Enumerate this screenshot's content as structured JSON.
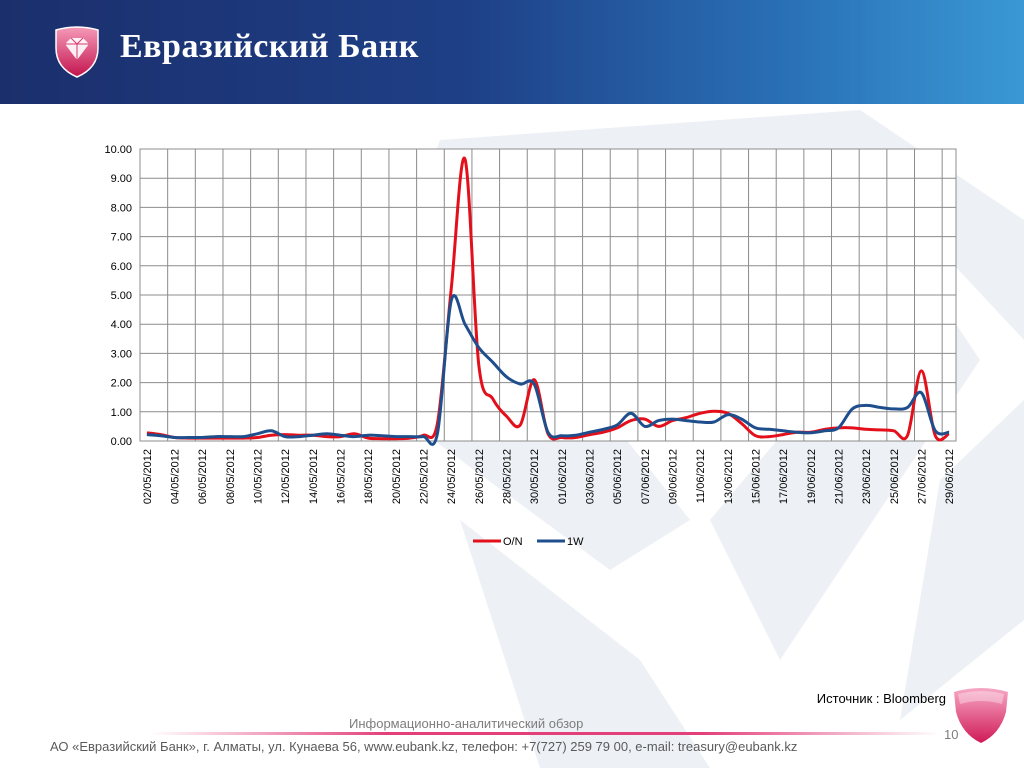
{
  "header": {
    "bank_name": "Евразийский Банк"
  },
  "chart_data": {
    "type": "line",
    "title": "",
    "xlabel": "",
    "ylabel": "",
    "ylim": [
      0,
      10
    ],
    "y_ticks": [
      "0.00",
      "1.00",
      "2.00",
      "3.00",
      "4.00",
      "5.00",
      "6.00",
      "7.00",
      "8.00",
      "9.00",
      "10.00"
    ],
    "grid": true,
    "legend_position": "bottom",
    "x_tick_labels": [
      "02/05/2012",
      "04/05/2012",
      "06/05/2012",
      "08/05/2012",
      "10/05/2012",
      "12/05/2012",
      "14/05/2012",
      "16/05/2012",
      "18/05/2012",
      "20/05/2012",
      "22/05/2012",
      "24/05/2012",
      "26/05/2012",
      "28/05/2012",
      "30/05/2012",
      "01/06/2012",
      "03/06/2012",
      "05/06/2012",
      "07/06/2012",
      "09/06/2012",
      "11/06/2012",
      "13/06/2012",
      "15/06/2012",
      "17/06/2012",
      "19/06/2012",
      "21/06/2012",
      "23/06/2012",
      "25/06/2012",
      "27/06/2012",
      "29/06/2012"
    ],
    "x": [
      "02/05/2012",
      "03/05/2012",
      "04/05/2012",
      "05/05/2012",
      "06/05/2012",
      "07/05/2012",
      "08/05/2012",
      "09/05/2012",
      "10/05/2012",
      "11/05/2012",
      "12/05/2012",
      "13/05/2012",
      "14/05/2012",
      "15/05/2012",
      "16/05/2012",
      "17/05/2012",
      "18/05/2012",
      "19/05/2012",
      "20/05/2012",
      "21/05/2012",
      "22/05/2012",
      "23/05/2012",
      "24/05/2012",
      "25/05/2012",
      "26/05/2012",
      "27/05/2012",
      "28/05/2012",
      "29/05/2012",
      "30/05/2012",
      "31/05/2012",
      "01/06/2012",
      "02/06/2012",
      "03/06/2012",
      "04/06/2012",
      "05/06/2012",
      "06/06/2012",
      "07/06/2012",
      "08/06/2012",
      "09/06/2012",
      "10/06/2012",
      "11/06/2012",
      "12/06/2012",
      "13/06/2012",
      "14/06/2012",
      "15/06/2012",
      "16/06/2012",
      "17/06/2012",
      "18/06/2012",
      "19/06/2012",
      "20/06/2012",
      "21/06/2012",
      "22/06/2012",
      "23/06/2012",
      "24/06/2012",
      "25/06/2012",
      "26/06/2012",
      "27/06/2012",
      "28/06/2012",
      "29/06/2012"
    ],
    "series": [
      {
        "name": "O/N",
        "color": "#e3101b",
        "values": [
          0.28,
          0.22,
          0.12,
          0.1,
          0.1,
          0.1,
          0.1,
          0.1,
          0.12,
          0.2,
          0.22,
          0.2,
          0.2,
          0.15,
          0.15,
          0.25,
          0.1,
          0.08,
          0.08,
          0.1,
          0.2,
          0.6,
          5.2,
          9.65,
          2.6,
          1.45,
          0.85,
          0.55,
          2.1,
          0.25,
          0.12,
          0.12,
          0.22,
          0.3,
          0.45,
          0.7,
          0.75,
          0.5,
          0.7,
          0.8,
          0.95,
          1.02,
          0.95,
          0.6,
          0.18,
          0.15,
          0.22,
          0.3,
          0.3,
          0.4,
          0.45,
          0.45,
          0.4,
          0.38,
          0.35,
          0.2,
          2.4,
          0.18,
          0.25
        ]
      },
      {
        "name": "1W",
        "color": "#1f4e8c",
        "values": [
          0.22,
          0.18,
          0.12,
          0.12,
          0.12,
          0.15,
          0.15,
          0.15,
          0.25,
          0.35,
          0.15,
          0.15,
          0.2,
          0.25,
          0.2,
          0.15,
          0.2,
          0.18,
          0.15,
          0.15,
          0.15,
          0.25,
          4.8,
          4.0,
          3.2,
          2.7,
          2.2,
          1.95,
          1.95,
          0.3,
          0.18,
          0.2,
          0.3,
          0.4,
          0.55,
          0.95,
          0.5,
          0.7,
          0.75,
          0.7,
          0.65,
          0.65,
          0.9,
          0.75,
          0.45,
          0.4,
          0.35,
          0.3,
          0.28,
          0.35,
          0.45,
          1.1,
          1.22,
          1.15,
          1.1,
          1.15,
          1.65,
          0.35,
          0.3
        ]
      }
    ]
  },
  "source_label": "Источник : Bloomberg",
  "footer": {
    "title": "Информационно-аналитический обзор",
    "contacts": "АО «Евразийский Банк», г. Алматы, ул. Кунаева 56, www.eubank.kz, телефон: +7(727) 259 79 00, e-mail: treasury@eubank.kz",
    "page_number": "10"
  },
  "colors": {
    "header_dark": "#1b2f6c",
    "header_light": "#3a98d4",
    "brand_accent": "#e3407a"
  },
  "icons": {
    "logo": "diamond-shield-icon",
    "corner": "gem-icon"
  }
}
